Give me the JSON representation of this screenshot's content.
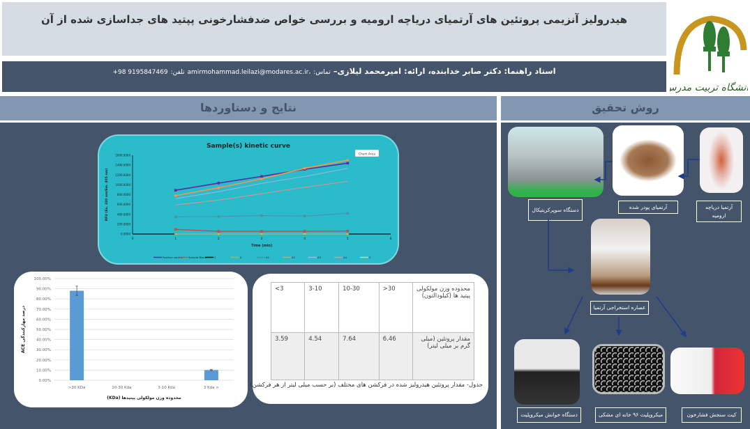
{
  "header": {
    "title": "هیدرولیز آنزیمی پروتئین های آرتمیای دریاچه ارومیه و بررسی خواص ضدفشارخونی پپتید های جداسازی شده از آن",
    "authors": "استاد راهنما: دکتر صابر خدابنده، ارائه: امیرمحمد لیلازی–",
    "contact_label": "تماس:",
    "email": "amirmohammad.leilazi@modares.ac.ir،",
    "phone_label": "تلفن:",
    "phone": "+98 9195847469",
    "logo_text": "دانشگاه تربیت مدرس",
    "logo_colors": {
      "arch": "#c8961e",
      "trees": "#2e7d32"
    }
  },
  "sections": {
    "results_title": "نتایج و دستاوردها",
    "methods_title": "روش تحقیق"
  },
  "colors": {
    "panel": "#44546a",
    "section_header": "#8497b0",
    "title_box": "#d6dce4",
    "chart_bg": "#2bbccc",
    "bar": "#5b9bd5",
    "arrow": "#1f3c88"
  },
  "chart_data": [
    {
      "type": "line",
      "title": "Sample(s) kinetic curve",
      "xlabel": "Time (min)",
      "ylabel": "RFU (Ex. 320 nm/Em. 405 nm)",
      "annotation": "Chart Area",
      "x": [
        1,
        2,
        3,
        4,
        5
      ],
      "xlim": [
        0,
        6
      ],
      "xticks": [
        "0",
        "1",
        "2",
        "3",
        "4",
        "5",
        "6"
      ],
      "ylim": [
        0,
        1600
      ],
      "yticks": [
        "0.0000",
        "200.0000",
        "400.0000",
        "600.0000",
        "800.0000",
        "1000.0000",
        "1200.0000",
        "1400.0000",
        "1600.0000"
      ],
      "legend": "bottom",
      "series": [
        {
          "name": "Positive control",
          "color": "#5b2a9e",
          "marker": "square",
          "values": [
            890,
            1035,
            1170,
            1315,
            1440
          ]
        },
        {
          "name": "Sample Blank",
          "color": "#c0504d",
          "marker": "square",
          "values": [
            95,
            55,
            55,
            55,
            60
          ]
        },
        {
          "name": "0",
          "color": "#000000",
          "marker": "diamond",
          "values": [
            0,
            0,
            0,
            0,
            0
          ]
        },
        {
          "name": "0",
          "color": "#9bbb59",
          "marker": "square",
          "values": [
            0,
            0,
            0,
            0,
            0
          ]
        },
        {
          "name": "A1",
          "color": "#4f8fa8",
          "marker": "x",
          "values": [
            350,
            355,
            375,
            365,
            420
          ]
        },
        {
          "name": "A2",
          "color": "#f79646",
          "marker": "circle",
          "values": [
            780,
            940,
            1120,
            1335,
            1500
          ]
        },
        {
          "name": "A3",
          "color": "#a5b4e0",
          "marker": "none",
          "values": [
            720,
            860,
            1030,
            1170,
            1335
          ]
        },
        {
          "name": "A4",
          "color": "#e8908a",
          "marker": "none",
          "values": [
            590,
            690,
            820,
            950,
            1070
          ]
        },
        {
          "name": "0",
          "color": "#c4e08a",
          "marker": "none",
          "values": [
            0,
            0,
            0,
            0,
            0
          ]
        }
      ]
    },
    {
      "type": "bar",
      "categories": [
        ">30 KDa",
        "10-30 Kda",
        "3-10 Kda",
        "3 Kda >"
      ],
      "values": [
        88,
        0,
        0,
        10
      ],
      "errors": [
        4.5,
        0,
        0,
        0.6
      ],
      "ylim": [
        0,
        100
      ],
      "yticks": [
        "0.00%",
        "10.00%",
        "20.00%",
        "30.00%",
        "40.00%",
        "50.00%",
        "60.00%",
        "70.00%",
        "80.00%",
        "90.00%",
        "100.00%"
      ],
      "xlabel": "محدوده وزن مولکولی پپتیدها (KDa)",
      "ylabel": "درصد مهارکنندگی ACE",
      "grid": true
    }
  ],
  "table": {
    "rows": [
      {
        "header": "محدوده وزن مولکولی پپتید ها (کیلودالتون)",
        "cells": [
          ">30",
          "10-30",
          "3-10",
          "<3"
        ]
      },
      {
        "header": "مقدار پروتئین (میلی گرم بر میلی لیتر)",
        "cells": [
          "6.46",
          "7.64",
          "4.54",
          "3.59"
        ]
      }
    ],
    "caption": "جدول- مقدار پروتئین هیدرولیز شده در فرکشن های مختلف (بر حسب میلی لیتر از هر فرکشن)"
  },
  "methods": {
    "steps": [
      "آرتمیا دریاچه ارومیه",
      "آرتمیای پودر شده",
      "دستگاه سوپرکریتیکال",
      "عصاره استخراجی آرتمیا",
      "کیت سنجش فشارخون",
      "میکروپلیت ۹۶ خانه ای مشکی",
      "دستگاه خوانش میکروپلیت"
    ]
  }
}
